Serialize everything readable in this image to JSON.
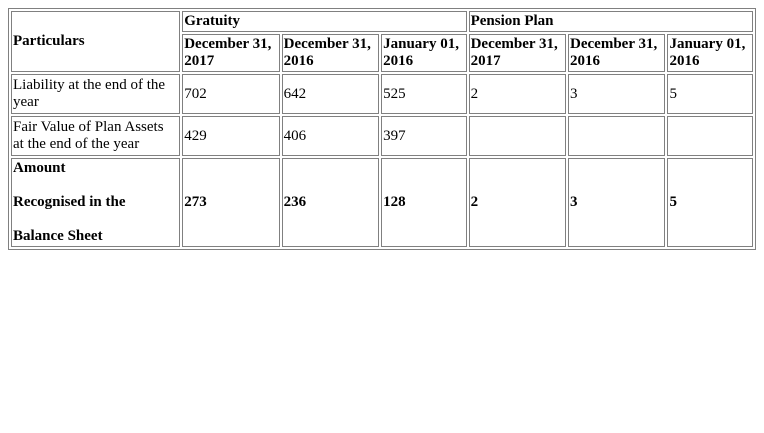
{
  "table": {
    "particulars_header": "Particulars",
    "groups": [
      {
        "label": "Gratuity"
      },
      {
        "label": "Pension Plan"
      }
    ],
    "date_headers": [
      [
        "December 31,",
        "2017"
      ],
      [
        "December 31,",
        "2016"
      ],
      [
        "January 01,",
        "2016"
      ],
      [
        "December 31,",
        "2017"
      ],
      [
        "December 31,",
        "2016"
      ],
      [
        "January 01,",
        "2016"
      ]
    ],
    "rows": [
      {
        "label": [
          "Liability at the end of the",
          "year"
        ],
        "values": [
          "702",
          "642",
          "525",
          "2",
          "3",
          "5"
        ],
        "bold": false
      },
      {
        "label": [
          "Fair Value of Plan Assets",
          "at the end of the year"
        ],
        "values": [
          "429",
          "406",
          "397",
          "",
          "",
          ""
        ],
        "bold": false
      },
      {
        "label": [
          "Amount",
          "Recognised in the",
          "Balance Sheet"
        ],
        "values": [
          "273",
          "236",
          "128",
          "2",
          "3",
          "5"
        ],
        "bold": true
      }
    ]
  }
}
